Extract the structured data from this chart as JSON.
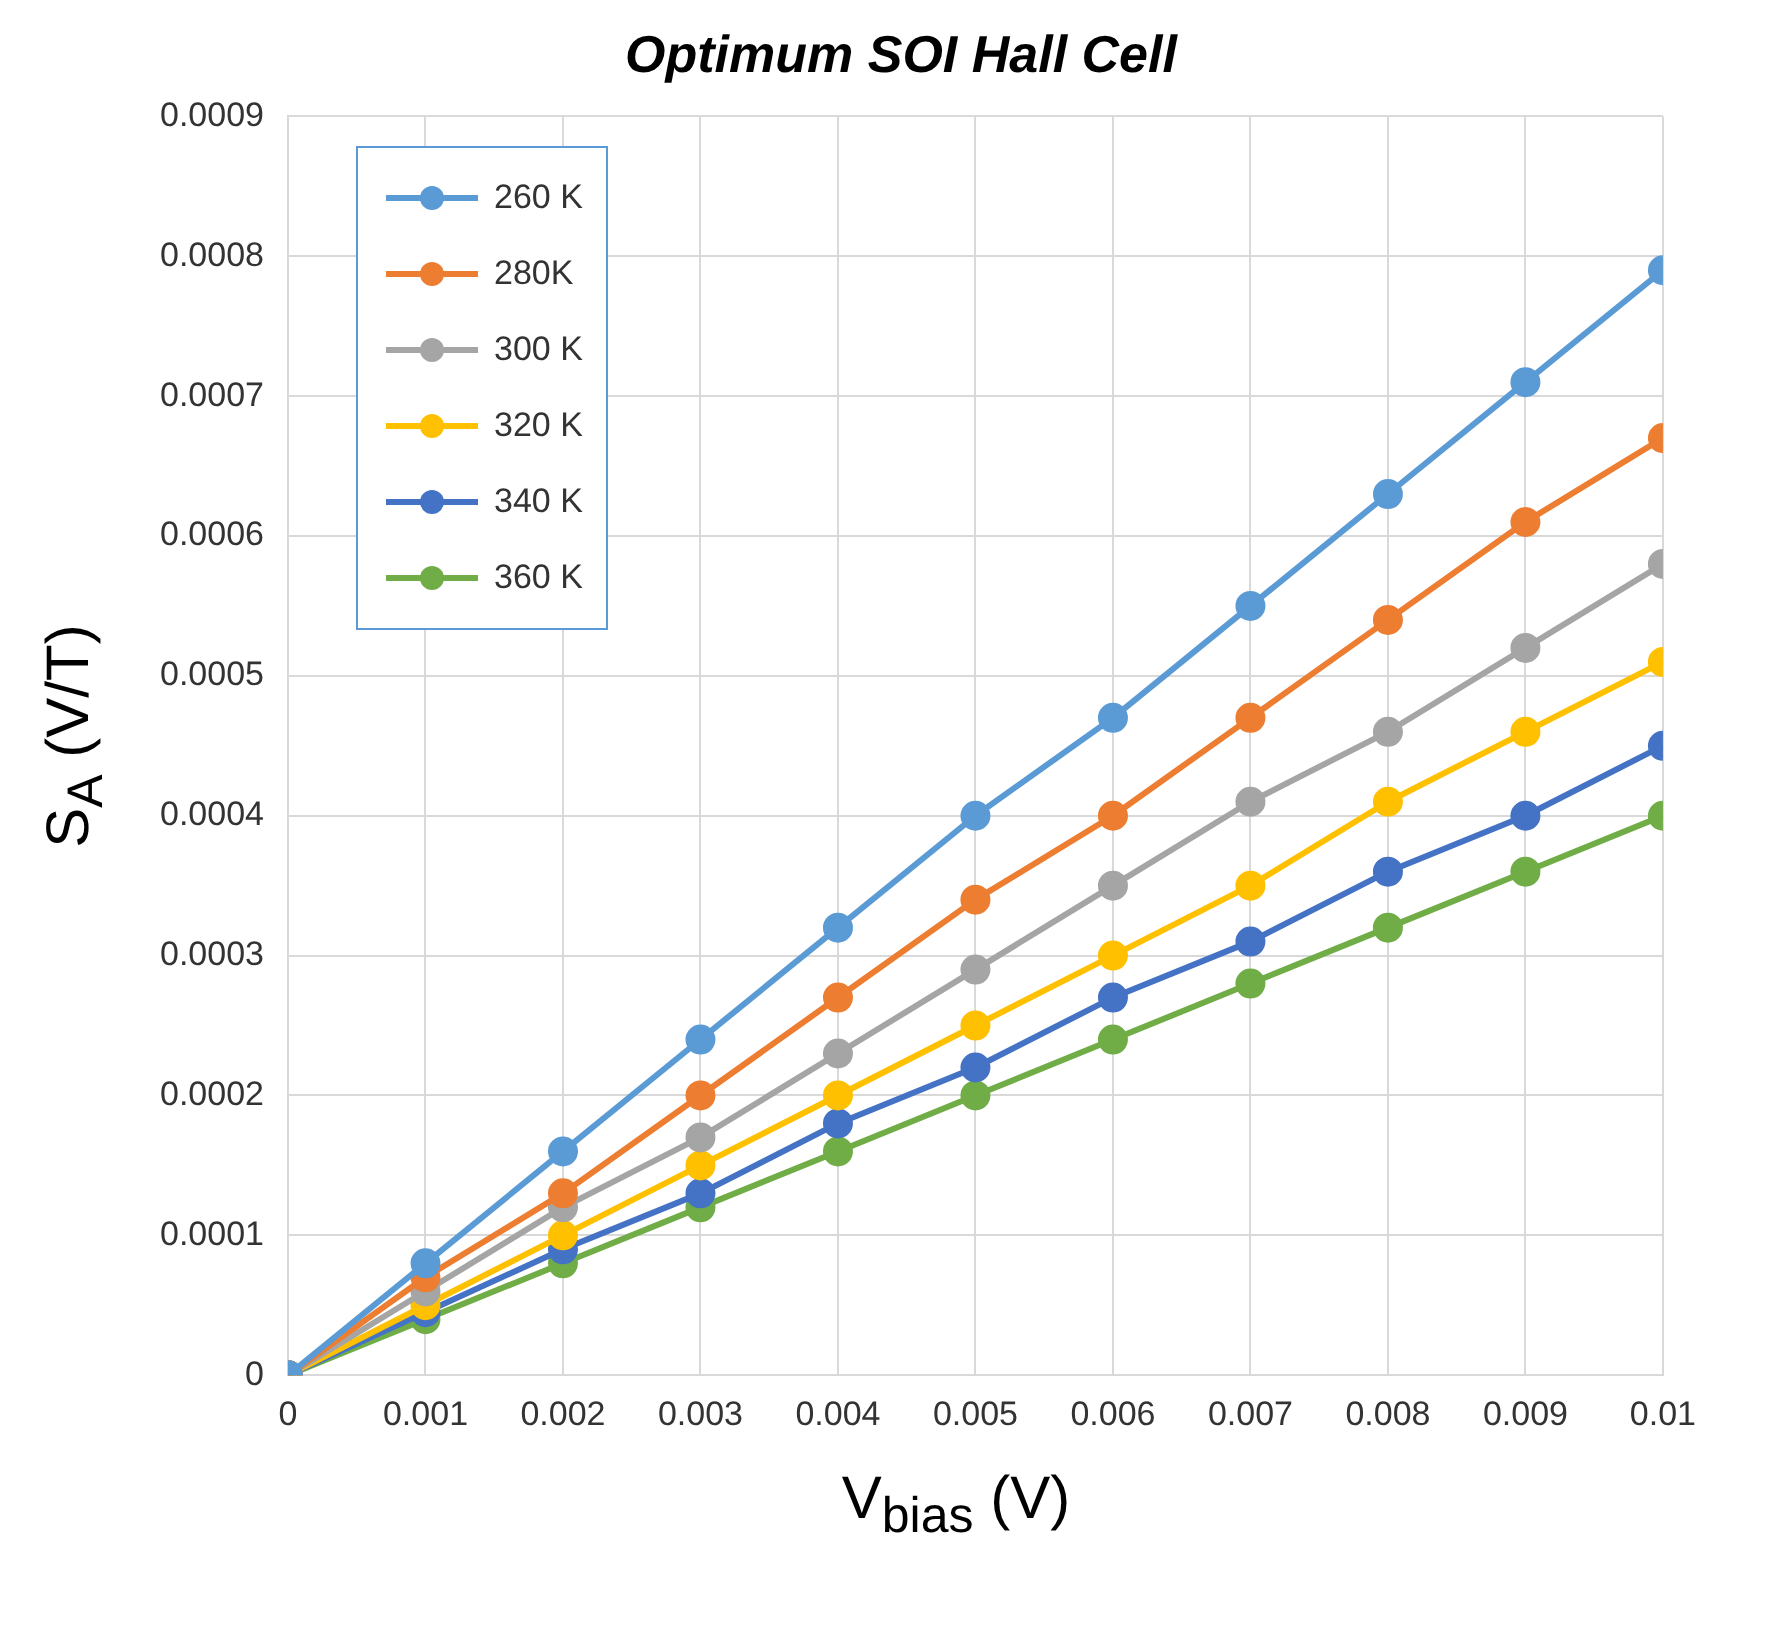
{
  "chart_data": {
    "type": "line",
    "title": "Optimum SOI Hall Cell",
    "xlabel": "V$_{bias}$ (V)",
    "ylabel": "S$_{A}$ (V/T)",
    "x": [
      0,
      0.001,
      0.002,
      0.003,
      0.004,
      0.005,
      0.006,
      0.007,
      0.008,
      0.009,
      0.01
    ],
    "xlim": [
      0,
      0.01
    ],
    "xticks": [
      0,
      0.001,
      0.002,
      0.003,
      0.004,
      0.005,
      0.006,
      0.007,
      0.008,
      0.009,
      0.01
    ],
    "ylim": [
      0,
      0.0009
    ],
    "yticks": [
      0,
      0.0001,
      0.0002,
      0.0003,
      0.0004,
      0.0005,
      0.0006,
      0.0007,
      0.0008,
      0.0009
    ],
    "grid": true,
    "legend": "top left",
    "marker": "circle",
    "line_style": "solid",
    "series": [
      {
        "name": "260 K",
        "color": "#5b9bd5",
        "values": [
          0,
          8e-05,
          0.00016,
          0.00024,
          0.00032,
          0.0004,
          0.00047,
          0.00055,
          0.00063,
          0.00071,
          0.00079
        ]
      },
      {
        "name": "280K",
        "color": "#ed7d31",
        "values": [
          0,
          7e-05,
          0.00013,
          0.0002,
          0.00027,
          0.00034,
          0.0004,
          0.00047,
          0.00054,
          0.00061,
          0.00067
        ]
      },
      {
        "name": "300 K",
        "color": "#a5a5a5",
        "values": [
          0,
          6e-05,
          0.00012,
          0.00017,
          0.00023,
          0.00029,
          0.00035,
          0.00041,
          0.00046,
          0.00052,
          0.00058
        ]
      },
      {
        "name": "320 K",
        "color": "#ffc000",
        "values": [
          0,
          5e-05,
          0.0001,
          0.00015,
          0.0002,
          0.00025,
          0.0003,
          0.00035,
          0.00041,
          0.00046,
          0.00051
        ]
      },
      {
        "name": "340 K",
        "color": "#4472c4",
        "values": [
          0,
          4.5e-05,
          9e-05,
          0.00013,
          0.00018,
          0.00022,
          0.00027,
          0.00031,
          0.00036,
          0.0004,
          0.00045
        ]
      },
      {
        "name": "360 K",
        "color": "#70ad47",
        "values": [
          0,
          4e-05,
          8e-05,
          0.00012,
          0.00016,
          0.0002,
          0.00024,
          0.00028,
          0.00032,
          0.00036,
          0.0004
        ]
      }
    ]
  }
}
